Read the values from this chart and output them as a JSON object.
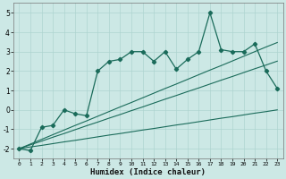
{
  "xlabel": "Humidex (Indice chaleur)",
  "x": [
    0,
    1,
    2,
    3,
    4,
    5,
    6,
    7,
    8,
    9,
    10,
    11,
    12,
    13,
    14,
    15,
    16,
    17,
    18,
    19,
    20,
    21,
    22,
    23
  ],
  "y_main": [
    -2.0,
    -2.1,
    -0.9,
    -0.8,
    0.0,
    -0.2,
    -0.3,
    2.0,
    2.5,
    2.6,
    3.0,
    3.0,
    2.5,
    3.0,
    2.1,
    2.6,
    3.0,
    5.0,
    3.1,
    3.0,
    3.0,
    3.4,
    2.0,
    1.1
  ],
  "y_linear1": [
    -2.0,
    -1.91,
    -1.83,
    -1.74,
    -1.65,
    -1.57,
    -1.48,
    -1.39,
    -1.3,
    -1.22,
    -1.13,
    -1.04,
    -0.96,
    -0.87,
    -0.78,
    -0.7,
    -0.61,
    -0.52,
    -0.43,
    -0.35,
    -0.26,
    -0.17,
    -0.09,
    0.0
  ],
  "y_linear2": [
    -2.0,
    -1.8,
    -1.61,
    -1.41,
    -1.22,
    -1.02,
    -0.82,
    -0.63,
    -0.43,
    -0.24,
    -0.04,
    0.15,
    0.35,
    0.55,
    0.74,
    0.94,
    1.13,
    1.33,
    1.53,
    1.72,
    1.92,
    2.12,
    2.31,
    2.51
  ],
  "y_linear3": [
    -2.0,
    -1.76,
    -1.52,
    -1.28,
    -1.04,
    -0.8,
    -0.57,
    -0.33,
    -0.09,
    0.15,
    0.38,
    0.62,
    0.86,
    1.1,
    1.33,
    1.57,
    1.81,
    2.05,
    2.28,
    2.52,
    2.76,
    3.0,
    3.24,
    3.47
  ],
  "line_color": "#1a6b5a",
  "bg_color": "#cce8e5",
  "grid_color": "#aed4d0",
  "ylim": [
    -2.5,
    5.5
  ],
  "xlim": [
    -0.5,
    23.5
  ],
  "yticks": [
    -2,
    -1,
    0,
    1,
    2,
    3,
    4,
    5
  ]
}
